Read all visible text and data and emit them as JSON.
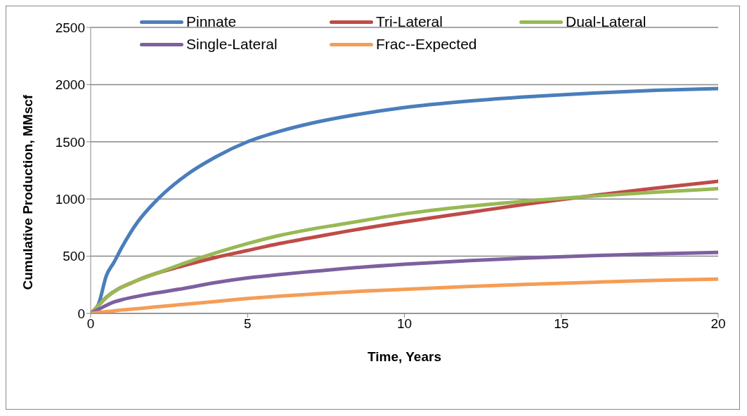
{
  "chart_data": {
    "type": "line",
    "xlabel": "Time, Years",
    "ylabel": "Cumulative Production, MMscf",
    "x": [
      0,
      0.25,
      0.5,
      0.75,
      1,
      1.5,
      2,
      3,
      4,
      5,
      6,
      7,
      8,
      10,
      12,
      14,
      16,
      18,
      20
    ],
    "series": [
      {
        "name": "Pinnate",
        "color": "#4a7ebb",
        "values": [
          0,
          80,
          330,
          450,
          580,
          800,
          960,
          1200,
          1370,
          1500,
          1590,
          1660,
          1715,
          1800,
          1855,
          1895,
          1925,
          1950,
          1965
        ]
      },
      {
        "name": "Tri-Lateral",
        "color": "#be4b48",
        "values": [
          0,
          70,
          140,
          null,
          null,
          290,
          null,
          420,
          490,
          550,
          610,
          660,
          710,
          800,
          880,
          960,
          1030,
          1095,
          1155
        ]
      },
      {
        "name": "Dual-Lateral",
        "color": "#98b954",
        "values": [
          0,
          70,
          140,
          190,
          230,
          290,
          340,
          440,
          530,
          610,
          680,
          735,
          780,
          870,
          935,
          985,
          1025,
          1060,
          1090
        ]
      },
      {
        "name": "Single-Lateral",
        "color": "#7d60a0",
        "values": [
          0,
          35,
          70,
          100,
          120,
          150,
          175,
          220,
          270,
          310,
          340,
          365,
          390,
          430,
          460,
          485,
          505,
          520,
          533
        ]
      },
      {
        "name": "Frac--Expected",
        "color": "#f59d56",
        "values": [
          0,
          8,
          15,
          22,
          30,
          42,
          55,
          80,
          105,
          130,
          150,
          168,
          185,
          210,
          235,
          255,
          272,
          288,
          300
        ]
      }
    ],
    "xlim": [
      0,
      20
    ],
    "xticks": [
      0,
      5,
      10,
      15,
      20
    ],
    "ylim": [
      0,
      2500
    ],
    "yticks": [
      0,
      500,
      1000,
      1500,
      2000,
      2500
    ],
    "grid": "y",
    "legend": "top",
    "marker": "none",
    "line_style": "solid"
  }
}
